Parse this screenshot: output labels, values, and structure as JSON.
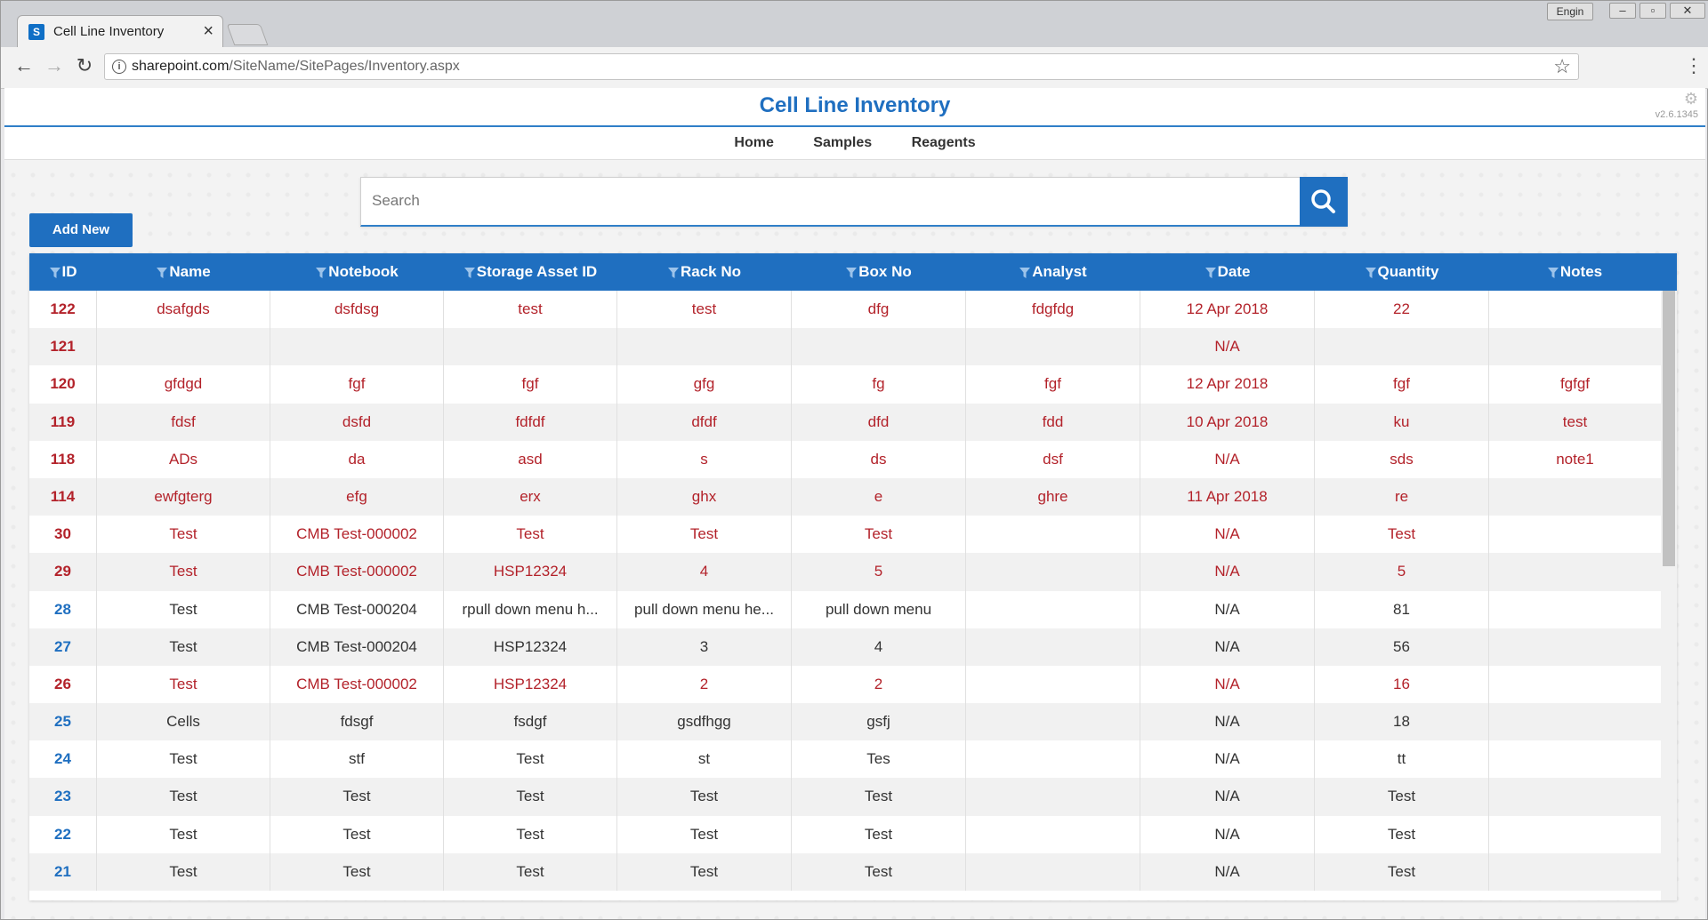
{
  "browser": {
    "tab_title": "Cell Line Inventory",
    "favicon_text": "S",
    "close_glyph": "×",
    "user_badge": "Engin",
    "url_host": "sharepoint.com",
    "url_path": "/SiteName/SitePages/Inventory.aspx",
    "info_glyph": "i",
    "star_glyph": "☆",
    "menu_glyph": "⋮",
    "back_glyph": "←",
    "forward_glyph": "→",
    "reload_glyph": "↻",
    "min_glyph": "–",
    "max_glyph": "▫",
    "close_win_glyph": "✕"
  },
  "app": {
    "title": "Cell Line Inventory",
    "version": "v2.6.1345",
    "gear_glyph": "⚙"
  },
  "nav": {
    "items": [
      {
        "label": "Home"
      },
      {
        "label": "Samples"
      },
      {
        "label": "Reagents"
      }
    ]
  },
  "search": {
    "placeholder": "Search",
    "value": ""
  },
  "toolbar": {
    "add_label": "Add New"
  },
  "colors": {
    "accent": "#1f6fc0",
    "red_text": "#b3222a"
  },
  "table": {
    "headers": [
      "ID",
      "Name",
      "Notebook",
      "Storage Asset ID",
      "Rack No",
      "Box No",
      "Analyst",
      "Date",
      "Quantity",
      "Notes"
    ],
    "rows": [
      {
        "style": "red",
        "cells": [
          "122",
          "dsafgds",
          "dsfdsg",
          "test",
          "test",
          "dfg",
          "fdgfdg",
          "12 Apr 2018",
          "22",
          ""
        ]
      },
      {
        "style": "red",
        "cells": [
          "121",
          "",
          "",
          "",
          "",
          "",
          "",
          "N/A",
          "",
          ""
        ]
      },
      {
        "style": "red",
        "cells": [
          "120",
          "gfdgd",
          "fgf",
          "fgf",
          "gfg",
          "fg",
          "fgf",
          "12 Apr 2018",
          "fgf",
          "fgfgf"
        ]
      },
      {
        "style": "red",
        "cells": [
          "119",
          "fdsf",
          "dsfd",
          "fdfdf",
          "dfdf",
          "dfd",
          "fdd",
          "10 Apr 2018",
          "ku",
          "test"
        ]
      },
      {
        "style": "red",
        "cells": [
          "118",
          "ADs",
          "da",
          "asd",
          "s",
          "ds",
          "dsf",
          "N/A",
          "sds",
          "note1"
        ]
      },
      {
        "style": "red",
        "cells": [
          "114",
          "ewfgterg",
          "efg",
          "erx",
          "ghx",
          "e",
          "ghre",
          "11 Apr 2018",
          "re",
          ""
        ]
      },
      {
        "style": "red",
        "cells": [
          "30",
          "Test",
          "CMB Test-000002",
          "Test",
          "Test",
          "Test",
          "",
          "N/A",
          "Test",
          ""
        ]
      },
      {
        "style": "red",
        "cells": [
          "29",
          "Test",
          "CMB Test-000002",
          "HSP12324",
          "4",
          "5",
          "",
          "N/A",
          "5",
          ""
        ]
      },
      {
        "style": "dark",
        "cells": [
          "28",
          "Test",
          "CMB Test-000204",
          "rpull down menu h...",
          "pull down menu he...",
          "pull down menu",
          "",
          "N/A",
          "81",
          ""
        ]
      },
      {
        "style": "dark",
        "cells": [
          "27",
          "Test",
          "CMB Test-000204",
          "HSP12324",
          "3",
          "4",
          "",
          "N/A",
          "56",
          ""
        ]
      },
      {
        "style": "red",
        "cells": [
          "26",
          "Test",
          "CMB Test-000002",
          "HSP12324",
          "2",
          "2",
          "",
          "N/A",
          "16",
          ""
        ]
      },
      {
        "style": "dark",
        "cells": [
          "25",
          "Cells",
          "fdsgf",
          "fsdgf",
          "gsdfhgg",
          "gsfj",
          "",
          "N/A",
          "18",
          ""
        ]
      },
      {
        "style": "dark",
        "cells": [
          "24",
          "Test",
          "stf",
          "Test",
          "st",
          "Tes",
          "",
          "N/A",
          "tt",
          ""
        ]
      },
      {
        "style": "dark",
        "cells": [
          "23",
          "Test",
          "Test",
          "Test",
          "Test",
          "Test",
          "",
          "N/A",
          "Test",
          ""
        ]
      },
      {
        "style": "dark",
        "cells": [
          "22",
          "Test",
          "Test",
          "Test",
          "Test",
          "Test",
          "",
          "N/A",
          "Test",
          ""
        ]
      },
      {
        "style": "dark",
        "cells": [
          "21",
          "Test",
          "Test",
          "Test",
          "Test",
          "Test",
          "",
          "N/A",
          "Test",
          ""
        ]
      }
    ]
  }
}
